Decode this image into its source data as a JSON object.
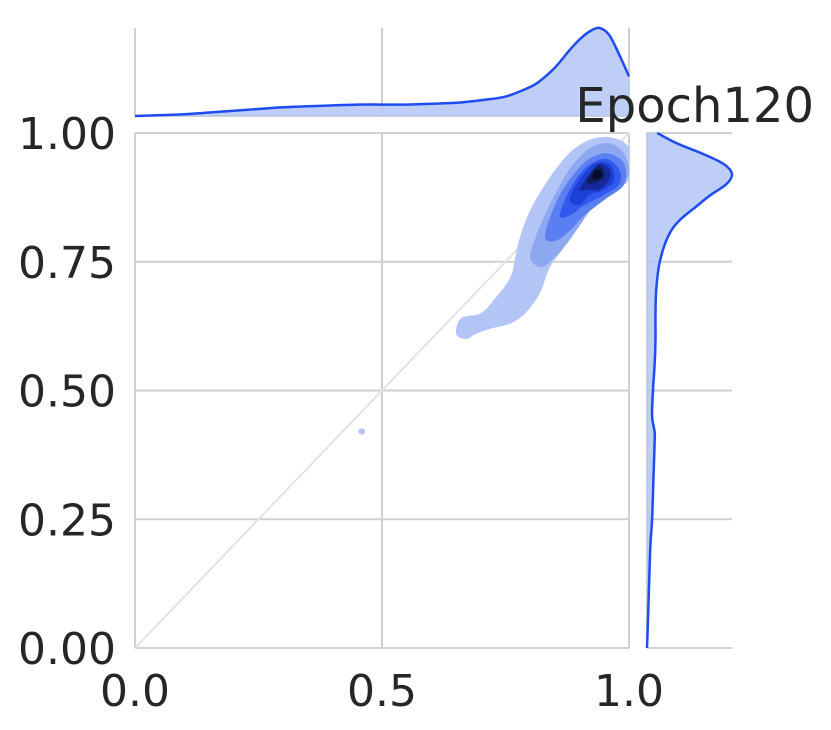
{
  "chart_data": {
    "type": "joint-kde",
    "title": "Epoch120",
    "xlabel": "",
    "ylabel": "",
    "xlim": [
      0.0,
      1.0
    ],
    "ylim": [
      0.0,
      1.0
    ],
    "x_ticks": [
      0.0,
      0.5,
      1.0
    ],
    "x_tick_labels": [
      "0.0",
      "0.5",
      "1.0"
    ],
    "y_ticks": [
      0.0,
      0.25,
      0.5,
      0.75,
      1.0
    ],
    "y_tick_labels": [
      "0.00",
      "0.25",
      "0.50",
      "0.75",
      "1.00"
    ],
    "grid": true,
    "reference_line": {
      "from": [
        0,
        0
      ],
      "to": [
        1,
        1
      ]
    },
    "colors": {
      "line": "#1f4cf0",
      "fill": "#b3c5f6",
      "grid": "#d0d0d0",
      "diagonal": "#e3e3e3",
      "levels": [
        "#b3c5f6",
        "#8ea7f1",
        "#5a7ff2",
        "#3259ee",
        "#1c3fd6",
        "#15299a",
        "#0d1c55",
        "#07092a"
      ]
    },
    "joint_density_peak": {
      "x": 0.93,
      "y": 0.93
    },
    "joint_contours": [
      {
        "level": 1,
        "points": [
          [
            0.65,
            0.61
          ],
          [
            0.66,
            0.64
          ],
          [
            0.7,
            0.65
          ],
          [
            0.73,
            0.68
          ],
          [
            0.76,
            0.72
          ],
          [
            0.77,
            0.76
          ],
          [
            0.78,
            0.8
          ],
          [
            0.8,
            0.85
          ],
          [
            0.83,
            0.9
          ],
          [
            0.86,
            0.94
          ],
          [
            0.89,
            0.97
          ],
          [
            0.93,
            0.99
          ],
          [
            0.97,
            0.99
          ],
          [
            1.0,
            0.97
          ],
          [
            1.0,
            0.91
          ],
          [
            0.97,
            0.89
          ],
          [
            0.93,
            0.86
          ],
          [
            0.9,
            0.83
          ],
          [
            0.87,
            0.78
          ],
          [
            0.84,
            0.74
          ],
          [
            0.82,
            0.69
          ],
          [
            0.79,
            0.65
          ],
          [
            0.76,
            0.63
          ],
          [
            0.72,
            0.62
          ],
          [
            0.69,
            0.61
          ],
          [
            0.67,
            0.6
          ]
        ]
      },
      {
        "level": 1,
        "points": [
          [
            0.452,
            0.422
          ],
          [
            0.457,
            0.426
          ],
          [
            0.465,
            0.424
          ],
          [
            0.464,
            0.416
          ],
          [
            0.456,
            0.415
          ]
        ]
      },
      {
        "level": 2,
        "points": [
          [
            0.8,
            0.76
          ],
          [
            0.82,
            0.82
          ],
          [
            0.85,
            0.88
          ],
          [
            0.88,
            0.93
          ],
          [
            0.92,
            0.97
          ],
          [
            0.96,
            0.98
          ],
          [
            0.99,
            0.96
          ],
          [
            1.0,
            0.92
          ],
          [
            0.97,
            0.89
          ],
          [
            0.93,
            0.86
          ],
          [
            0.9,
            0.82
          ],
          [
            0.87,
            0.78
          ],
          [
            0.84,
            0.75
          ],
          [
            0.82,
            0.74
          ]
        ]
      },
      {
        "level": 3,
        "points": [
          [
            0.83,
            0.8
          ],
          [
            0.85,
            0.86
          ],
          [
            0.88,
            0.91
          ],
          [
            0.92,
            0.95
          ],
          [
            0.96,
            0.96
          ],
          [
            0.99,
            0.94
          ],
          [
            0.99,
            0.9
          ],
          [
            0.95,
            0.87
          ],
          [
            0.91,
            0.84
          ],
          [
            0.88,
            0.81
          ],
          [
            0.85,
            0.79
          ]
        ]
      },
      {
        "level": 4,
        "points": [
          [
            0.86,
            0.84
          ],
          [
            0.88,
            0.89
          ],
          [
            0.91,
            0.93
          ],
          [
            0.95,
            0.95
          ],
          [
            0.98,
            0.93
          ],
          [
            0.98,
            0.9
          ],
          [
            0.95,
            0.88
          ],
          [
            0.91,
            0.86
          ],
          [
            0.88,
            0.84
          ]
        ]
      },
      {
        "level": 5,
        "points": [
          [
            0.88,
            0.87
          ],
          [
            0.9,
            0.91
          ],
          [
            0.93,
            0.94
          ],
          [
            0.96,
            0.94
          ],
          [
            0.97,
            0.91
          ],
          [
            0.95,
            0.89
          ],
          [
            0.92,
            0.88
          ],
          [
            0.9,
            0.86
          ]
        ]
      },
      {
        "level": 6,
        "points": [
          [
            0.9,
            0.89
          ],
          [
            0.92,
            0.92
          ],
          [
            0.94,
            0.94
          ],
          [
            0.96,
            0.93
          ],
          [
            0.96,
            0.91
          ],
          [
            0.94,
            0.89
          ],
          [
            0.92,
            0.89
          ]
        ]
      },
      {
        "level": 7,
        "points": [
          [
            0.915,
            0.905
          ],
          [
            0.925,
            0.925
          ],
          [
            0.94,
            0.935
          ],
          [
            0.95,
            0.925
          ],
          [
            0.948,
            0.912
          ],
          [
            0.935,
            0.905
          ],
          [
            0.922,
            0.902
          ]
        ]
      },
      {
        "level": 8,
        "points": [
          [
            0.925,
            0.915
          ],
          [
            0.932,
            0.926
          ],
          [
            0.942,
            0.927
          ],
          [
            0.945,
            0.918
          ],
          [
            0.938,
            0.911
          ],
          [
            0.93,
            0.911
          ]
        ]
      }
    ],
    "x_marginal_density": {
      "x": [
        0.0,
        0.05,
        0.1,
        0.15,
        0.2,
        0.25,
        0.3,
        0.35,
        0.4,
        0.45,
        0.5,
        0.55,
        0.6,
        0.65,
        0.7,
        0.75,
        0.8,
        0.82,
        0.85,
        0.88,
        0.9,
        0.92,
        0.94,
        0.96,
        0.98,
        1.0
      ],
      "density": [
        0.0,
        0.01,
        0.02,
        0.04,
        0.06,
        0.08,
        0.1,
        0.11,
        0.12,
        0.13,
        0.13,
        0.13,
        0.14,
        0.15,
        0.18,
        0.22,
        0.33,
        0.4,
        0.55,
        0.75,
        0.87,
        0.96,
        1.0,
        0.92,
        0.7,
        0.45
      ]
    },
    "y_marginal_density": {
      "y": [
        0.0,
        0.05,
        0.1,
        0.15,
        0.2,
        0.25,
        0.3,
        0.35,
        0.4,
        0.42,
        0.45,
        0.5,
        0.55,
        0.6,
        0.65,
        0.7,
        0.75,
        0.8,
        0.83,
        0.86,
        0.88,
        0.9,
        0.92,
        0.94,
        0.96,
        0.98,
        1.0
      ],
      "density": [
        0.0,
        0.01,
        0.02,
        0.03,
        0.04,
        0.06,
        0.07,
        0.08,
        0.09,
        0.09,
        0.06,
        0.07,
        0.09,
        0.1,
        0.1,
        0.11,
        0.15,
        0.25,
        0.38,
        0.6,
        0.75,
        0.93,
        1.0,
        0.9,
        0.65,
        0.35,
        0.12
      ]
    }
  }
}
